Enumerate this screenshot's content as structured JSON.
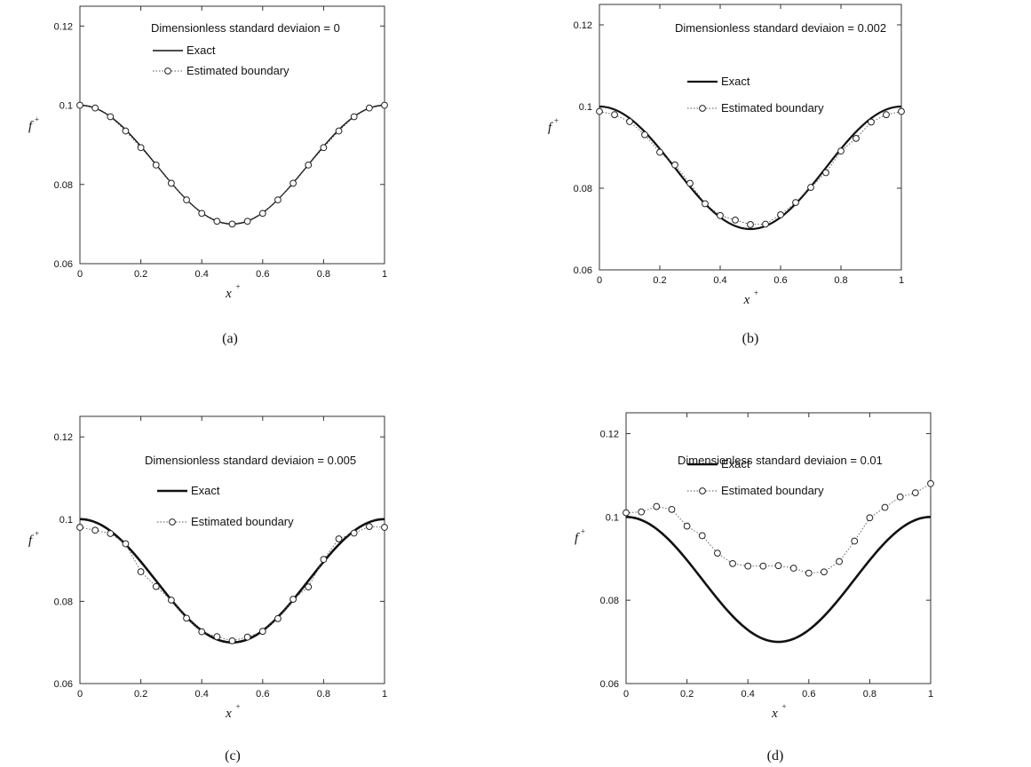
{
  "chart_data": [
    {
      "type": "line",
      "caption": "(a)",
      "annotation": "Dimensionless standard deviaion = 0",
      "legend": {
        "exact": "Exact",
        "estimated": "Estimated boundary",
        "placement": "top-center"
      },
      "xlabel": "x",
      "xlabel_sup": "+",
      "ylabel": "f",
      "ylabel_sup": "+",
      "xlim": [
        0,
        1
      ],
      "ylim": [
        0.06,
        0.125
      ],
      "xticks": [
        "0",
        "0.2",
        "0.4",
        "0.6",
        "0.8",
        "1"
      ],
      "yticks": [
        "0.06",
        "0.08",
        "0.1",
        "0.12"
      ],
      "estimated_style": "dotted-line-markers",
      "exact_weight": 1.4,
      "x": [
        0,
        0.05,
        0.1,
        0.15,
        0.2,
        0.25,
        0.3,
        0.35,
        0.4,
        0.45,
        0.5,
        0.55,
        0.6,
        0.65,
        0.7,
        0.75,
        0.8,
        0.85,
        0.9,
        0.95,
        1
      ],
      "estimated": [
        0.1,
        0.0993,
        0.0971,
        0.0935,
        0.0893,
        0.0849,
        0.0803,
        0.0761,
        0.0727,
        0.0707,
        0.07,
        0.0707,
        0.0727,
        0.0761,
        0.0803,
        0.0849,
        0.0893,
        0.0935,
        0.0971,
        0.0993,
        0.1
      ]
    },
    {
      "type": "line",
      "caption": "(b)",
      "annotation": "Dimensionless standard deviaion = 0.002",
      "legend": {
        "exact": "Exact",
        "estimated": "Estimated boundary",
        "placement": "top-center"
      },
      "xlabel": "x",
      "xlabel_sup": "+",
      "ylabel": "f",
      "ylabel_sup": "+",
      "xlim": [
        0,
        1
      ],
      "ylim": [
        0.06,
        0.125
      ],
      "xticks": [
        "0",
        "0.2",
        "0.4",
        "0.6",
        "0.8",
        "1"
      ],
      "yticks": [
        "0.06",
        "0.08",
        "0.1",
        "0.12"
      ],
      "estimated_style": "dotted-line-markers",
      "exact_weight": 2.2,
      "x": [
        0,
        0.05,
        0.1,
        0.15,
        0.2,
        0.25,
        0.3,
        0.35,
        0.4,
        0.45,
        0.5,
        0.55,
        0.6,
        0.65,
        0.7,
        0.75,
        0.8,
        0.85,
        0.9,
        0.95,
        1
      ],
      "estimated": [
        0.0988,
        0.098,
        0.0963,
        0.0931,
        0.0888,
        0.0857,
        0.0812,
        0.0762,
        0.0733,
        0.0722,
        0.0711,
        0.0712,
        0.0735,
        0.0765,
        0.0802,
        0.0838,
        0.0891,
        0.0922,
        0.0962,
        0.098,
        0.0988
      ]
    },
    {
      "type": "line",
      "caption": "(c)",
      "annotation": "Dimensionless standard deviaion = 0.005",
      "legend": {
        "exact": "Exact",
        "estimated": "Estimated boundary",
        "placement": "top-center"
      },
      "xlabel": "x",
      "xlabel_sup": "+",
      "ylabel": "f",
      "ylabel_sup": "+",
      "xlim": [
        0,
        1
      ],
      "ylim": [
        0.06,
        0.125
      ],
      "xticks": [
        "0",
        "0.2",
        "0.4",
        "0.6",
        "0.8",
        "1"
      ],
      "yticks": [
        "0.06",
        "0.08",
        "0.1",
        "0.12"
      ],
      "estimated_style": "dotted-line-markers",
      "exact_weight": 2.6,
      "x": [
        0,
        0.05,
        0.1,
        0.15,
        0.2,
        0.25,
        0.3,
        0.35,
        0.4,
        0.45,
        0.5,
        0.55,
        0.6,
        0.65,
        0.7,
        0.75,
        0.8,
        0.85,
        0.9,
        0.95,
        1
      ],
      "estimated": [
        0.098,
        0.0973,
        0.0965,
        0.094,
        0.0872,
        0.0836,
        0.0803,
        0.0759,
        0.0726,
        0.0714,
        0.0704,
        0.0713,
        0.0727,
        0.0758,
        0.0805,
        0.0835,
        0.0902,
        0.0952,
        0.0966,
        0.0982,
        0.098
      ]
    },
    {
      "type": "line",
      "caption": "(d)",
      "annotation": "Dimensionless standard deviaion = 0.01",
      "legend": {
        "exact": "Exact",
        "estimated": "Estimated boundary",
        "placement": "top-center"
      },
      "xlabel": "x",
      "xlabel_sup": "+",
      "ylabel": "f",
      "ylabel_sup": "+",
      "xlim": [
        0,
        1
      ],
      "ylim": [
        0.06,
        0.125
      ],
      "xticks": [
        "0",
        "0.2",
        "0.4",
        "0.6",
        "0.8",
        "1"
      ],
      "yticks": [
        "0.06",
        "0.08",
        "0.1",
        "0.12"
      ],
      "estimated_style": "dotted-line-markers",
      "exact_weight": 2.6,
      "x": [
        0,
        0.05,
        0.1,
        0.15,
        0.2,
        0.25,
        0.3,
        0.35,
        0.4,
        0.45,
        0.5,
        0.55,
        0.6,
        0.65,
        0.7,
        0.75,
        0.8,
        0.85,
        0.9,
        0.95,
        1
      ],
      "estimated": [
        0.101,
        0.1012,
        0.1025,
        0.1018,
        0.0978,
        0.0955,
        0.0913,
        0.0888,
        0.0882,
        0.0882,
        0.0883,
        0.0877,
        0.0865,
        0.0868,
        0.0893,
        0.0942,
        0.0998,
        0.1023,
        0.1048,
        0.1058,
        0.108
      ]
    }
  ]
}
